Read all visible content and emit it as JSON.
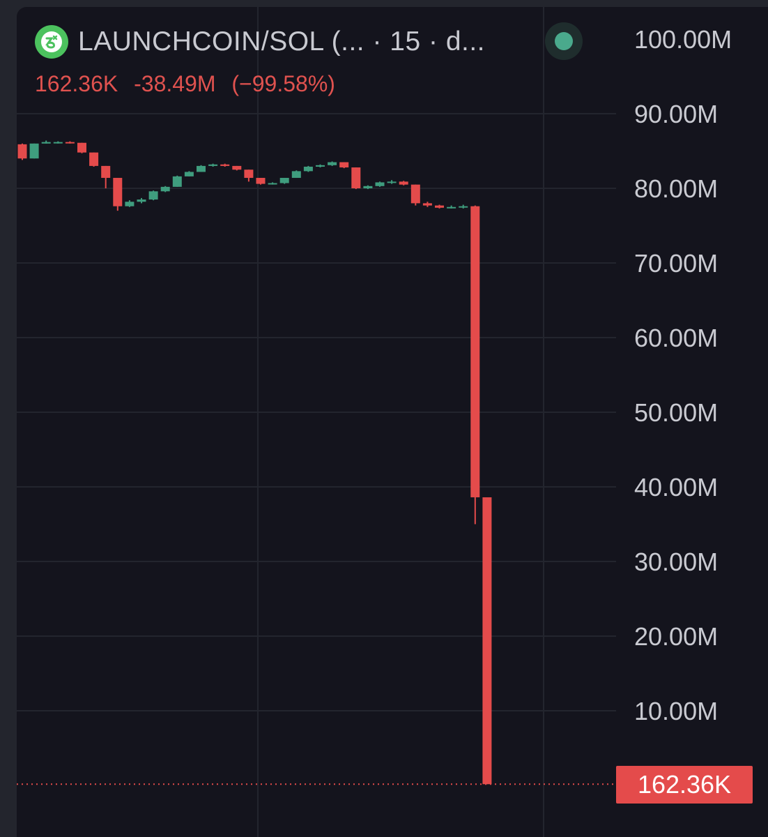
{
  "header": {
    "symbol": "LAUNCHCOIN/SOL (... · 15 · d...",
    "icon": "coin-logo-icon",
    "status_icon": "live-status-dot-icon",
    "status_color": "#4aa98c"
  },
  "legend": {
    "last": "162.36K",
    "change": "-38.49M",
    "change_pct": "(−99.58%)",
    "color": "#e0524f"
  },
  "price_badge": {
    "label": "162.36K",
    "color": "#e44b4b"
  },
  "chart_data": {
    "type": "candlestick",
    "title": "",
    "xlabel": "",
    "ylabel": "",
    "ylim": [
      0,
      100000000
    ],
    "y_ticks": [
      {
        "value": 100000000,
        "label": "100.00M"
      },
      {
        "value": 90000000,
        "label": "90.00M"
      },
      {
        "value": 80000000,
        "label": "80.00M"
      },
      {
        "value": 70000000,
        "label": "70.00M"
      },
      {
        "value": 60000000,
        "label": "60.00M"
      },
      {
        "value": 50000000,
        "label": "50.00M"
      },
      {
        "value": 40000000,
        "label": "40.00M"
      },
      {
        "value": 30000000,
        "label": "30.00M"
      },
      {
        "value": 20000000,
        "label": "20.00M"
      },
      {
        "value": 10000000,
        "label": "10.00M"
      }
    ],
    "last_price": 162360,
    "grid": true,
    "up_color": "#3f9d7e",
    "down_color": "#e44b4b",
    "candles": [
      {
        "o": 85.9,
        "h": 86.0,
        "l": 83.8,
        "c": 84.0
      },
      {
        "o": 84.0,
        "h": 86.0,
        "l": 84.0,
        "c": 86.0
      },
      {
        "o": 86.0,
        "h": 86.4,
        "l": 86.0,
        "c": 86.2
      },
      {
        "o": 86.2,
        "h": 86.3,
        "l": 86.0,
        "c": 86.2
      },
      {
        "o": 86.2,
        "h": 86.3,
        "l": 86.0,
        "c": 86.1
      },
      {
        "o": 86.1,
        "h": 86.1,
        "l": 84.7,
        "c": 84.8
      },
      {
        "o": 84.8,
        "h": 84.8,
        "l": 82.9,
        "c": 83.0
      },
      {
        "o": 83.0,
        "h": 83.0,
        "l": 80.0,
        "c": 81.4
      },
      {
        "o": 81.4,
        "h": 81.4,
        "l": 77.0,
        "c": 77.6
      },
      {
        "o": 77.6,
        "h": 78.4,
        "l": 77.5,
        "c": 78.2
      },
      {
        "o": 78.2,
        "h": 78.7,
        "l": 78.0,
        "c": 78.5
      },
      {
        "o": 78.5,
        "h": 79.7,
        "l": 78.4,
        "c": 79.6
      },
      {
        "o": 79.6,
        "h": 80.3,
        "l": 79.5,
        "c": 80.2
      },
      {
        "o": 80.2,
        "h": 81.7,
        "l": 80.2,
        "c": 81.6
      },
      {
        "o": 81.6,
        "h": 82.3,
        "l": 81.6,
        "c": 82.2
      },
      {
        "o": 82.2,
        "h": 83.1,
        "l": 82.2,
        "c": 83.0
      },
      {
        "o": 83.0,
        "h": 83.3,
        "l": 82.9,
        "c": 83.2
      },
      {
        "o": 83.2,
        "h": 83.3,
        "l": 82.9,
        "c": 83.0
      },
      {
        "o": 83.0,
        "h": 83.0,
        "l": 82.4,
        "c": 82.5
      },
      {
        "o": 82.5,
        "h": 82.5,
        "l": 80.9,
        "c": 81.4
      },
      {
        "o": 81.4,
        "h": 81.4,
        "l": 80.5,
        "c": 80.6
      },
      {
        "o": 80.6,
        "h": 80.8,
        "l": 80.5,
        "c": 80.7
      },
      {
        "o": 80.7,
        "h": 81.4,
        "l": 80.6,
        "c": 81.4
      },
      {
        "o": 81.4,
        "h": 82.4,
        "l": 81.4,
        "c": 82.3
      },
      {
        "o": 82.3,
        "h": 83.0,
        "l": 82.2,
        "c": 82.9
      },
      {
        "o": 82.9,
        "h": 83.2,
        "l": 82.8,
        "c": 83.1
      },
      {
        "o": 83.1,
        "h": 83.6,
        "l": 83.0,
        "c": 83.5
      },
      {
        "o": 83.5,
        "h": 83.5,
        "l": 82.7,
        "c": 82.8
      },
      {
        "o": 82.8,
        "h": 82.8,
        "l": 79.9,
        "c": 80.0
      },
      {
        "o": 80.0,
        "h": 80.4,
        "l": 79.9,
        "c": 80.3
      },
      {
        "o": 80.3,
        "h": 80.9,
        "l": 80.2,
        "c": 80.8
      },
      {
        "o": 80.8,
        "h": 81.1,
        "l": 80.6,
        "c": 80.9
      },
      {
        "o": 80.9,
        "h": 81.0,
        "l": 80.4,
        "c": 80.5
      },
      {
        "o": 80.5,
        "h": 80.5,
        "l": 77.7,
        "c": 78.0
      },
      {
        "o": 78.0,
        "h": 78.2,
        "l": 77.5,
        "c": 77.7
      },
      {
        "o": 77.7,
        "h": 77.8,
        "l": 77.3,
        "c": 77.4
      },
      {
        "o": 77.4,
        "h": 77.7,
        "l": 77.3,
        "c": 77.5
      },
      {
        "o": 77.5,
        "h": 77.8,
        "l": 77.3,
        "c": 77.6
      },
      {
        "o": 77.6,
        "h": 77.7,
        "l": 35.0,
        "c": 38.6
      },
      {
        "o": 38.6,
        "h": 38.6,
        "l": 0.16,
        "c": 0.16236
      }
    ]
  }
}
